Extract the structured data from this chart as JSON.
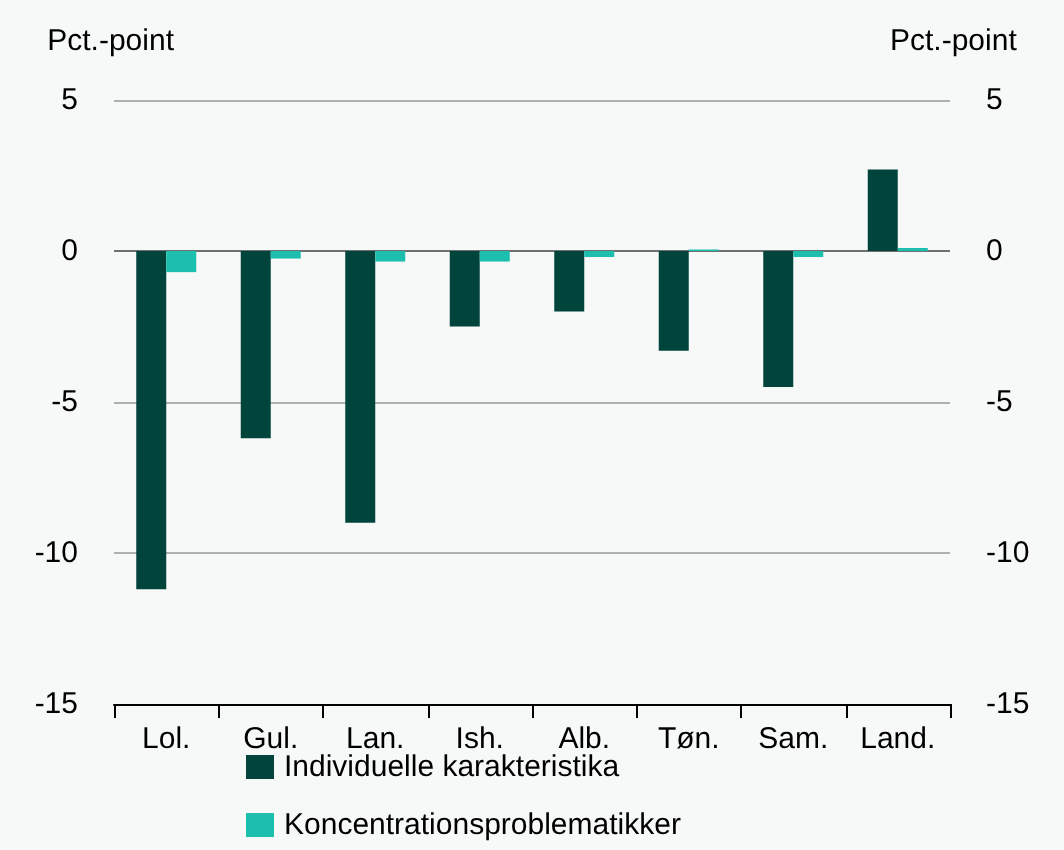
{
  "chart_data": {
    "type": "bar",
    "ylabel": "Pct.-point",
    "y2label": "Pct.-point",
    "categories": [
      "Lol.",
      "Gul.",
      "Lan.",
      "Ish.",
      "Alb.",
      "Tøn.",
      "Sam.",
      "Land."
    ],
    "series": [
      {
        "name": "Individuelle karakteristika",
        "color": "#00443c",
        "values": [
          -11.2,
          -6.2,
          -9.0,
          -2.5,
          -2.0,
          -3.3,
          -4.5,
          2.7
        ]
      },
      {
        "name": "Koncentrationsproblematikker",
        "color": "#1cbfae",
        "values": [
          -0.7,
          -0.25,
          -0.35,
          -0.35,
          -0.2,
          0.05,
          -0.2,
          0.1
        ]
      }
    ],
    "ylim": [
      -15,
      5
    ],
    "yticks": [
      -15,
      -10,
      -5,
      0,
      5
    ],
    "y2lim": [
      -15,
      5
    ],
    "y2ticks": [
      -15,
      -10,
      -5,
      0,
      5
    ],
    "grid": "y",
    "legend": "bottom"
  }
}
